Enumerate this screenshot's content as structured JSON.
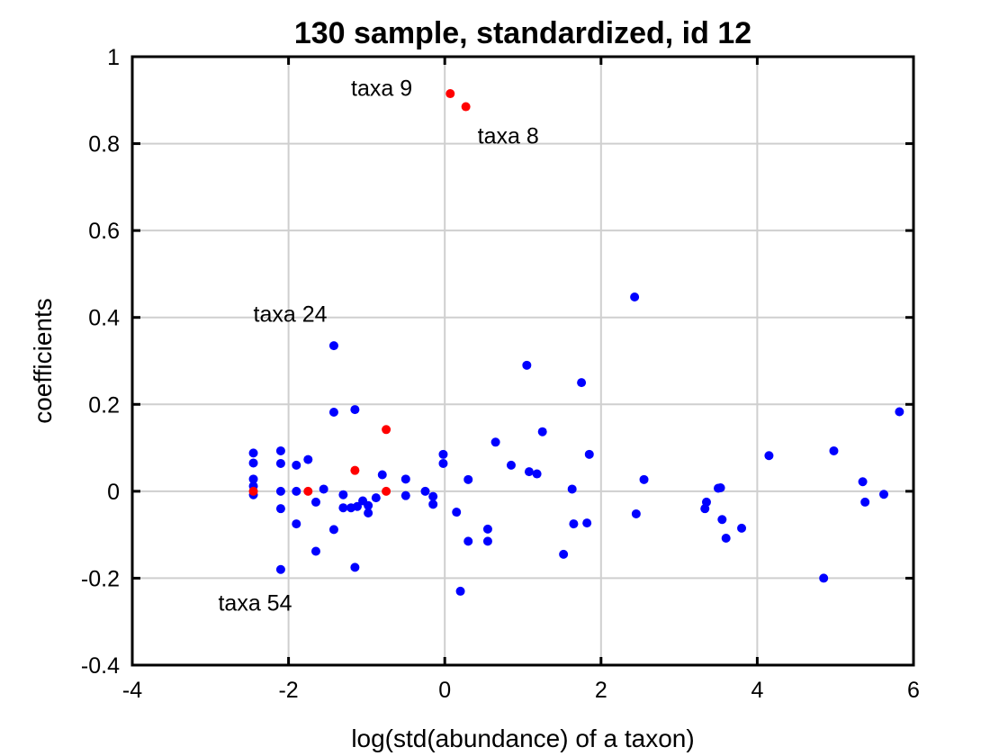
{
  "chart_data": {
    "type": "scatter",
    "title": "130 sample, standardized, id 12",
    "xlabel": "log(std(abundance) of a taxon)",
    "ylabel": "coefficients",
    "xlim": [
      -4,
      6
    ],
    "ylim": [
      -0.4,
      1
    ],
    "xticks": [
      -4,
      -2,
      0,
      2,
      4,
      6
    ],
    "yticks": [
      -0.4,
      -0.2,
      0,
      0.2,
      0.4,
      0.6,
      0.8,
      1
    ],
    "grid": true,
    "series": [
      {
        "color": "#0000ff",
        "points": [
          [
            -2.45,
            0.088
          ],
          [
            -2.45,
            0.065
          ],
          [
            -2.45,
            0.028
          ],
          [
            -2.45,
            0.012
          ],
          [
            -2.45,
            -0.008
          ],
          [
            -2.1,
            0.093
          ],
          [
            -2.1,
            0.064
          ],
          [
            -2.1,
            0.0
          ],
          [
            -2.1,
            -0.04
          ],
          [
            -2.1,
            -0.18
          ],
          [
            -1.9,
            0.06
          ],
          [
            -1.9,
            0.0
          ],
          [
            -1.9,
            -0.075
          ],
          [
            -1.75,
            0.073
          ],
          [
            -1.65,
            -0.025
          ],
          [
            -1.65,
            -0.138
          ],
          [
            -1.55,
            0.005
          ],
          [
            -1.42,
            0.335
          ],
          [
            -1.42,
            0.182
          ],
          [
            -1.42,
            -0.088
          ],
          [
            -1.3,
            -0.008
          ],
          [
            -1.3,
            -0.038
          ],
          [
            -1.2,
            -0.038
          ],
          [
            -1.15,
            0.188
          ],
          [
            -1.15,
            -0.175
          ],
          [
            -1.12,
            -0.035
          ],
          [
            -1.05,
            -0.022
          ],
          [
            -0.98,
            -0.033
          ],
          [
            -0.98,
            -0.05
          ],
          [
            -0.88,
            -0.015
          ],
          [
            -0.8,
            0.038
          ],
          [
            -0.5,
            0.028
          ],
          [
            -0.5,
            -0.01
          ],
          [
            -0.25,
            0.0
          ],
          [
            -0.15,
            -0.012
          ],
          [
            -0.15,
            -0.03
          ],
          [
            -0.02,
            0.085
          ],
          [
            -0.02,
            0.064
          ],
          [
            0.15,
            -0.048
          ],
          [
            0.2,
            -0.23
          ],
          [
            0.3,
            0.027
          ],
          [
            0.3,
            -0.115
          ],
          [
            0.55,
            -0.087
          ],
          [
            0.55,
            -0.115
          ],
          [
            0.65,
            0.113
          ],
          [
            0.85,
            0.06
          ],
          [
            1.05,
            0.29
          ],
          [
            1.08,
            0.045
          ],
          [
            1.18,
            0.04
          ],
          [
            1.25,
            0.137
          ],
          [
            1.52,
            -0.145
          ],
          [
            1.63,
            0.005
          ],
          [
            1.65,
            -0.075
          ],
          [
            1.75,
            0.25
          ],
          [
            1.82,
            -0.073
          ],
          [
            1.85,
            0.085
          ],
          [
            2.43,
            0.447
          ],
          [
            2.45,
            -0.052
          ],
          [
            2.55,
            0.027
          ],
          [
            3.33,
            -0.04
          ],
          [
            3.35,
            -0.025
          ],
          [
            3.5,
            0.007
          ],
          [
            3.53,
            0.008
          ],
          [
            3.55,
            -0.065
          ],
          [
            3.6,
            -0.108
          ],
          [
            3.8,
            -0.085
          ],
          [
            4.15,
            0.082
          ],
          [
            4.85,
            -0.2
          ],
          [
            4.98,
            0.093
          ],
          [
            5.35,
            0.022
          ],
          [
            5.38,
            -0.025
          ],
          [
            5.62,
            -0.007
          ],
          [
            5.82,
            0.183
          ]
        ]
      },
      {
        "color": "#ff0000",
        "points": [
          [
            0.07,
            0.915
          ],
          [
            0.27,
            0.885
          ],
          [
            -0.75,
            0.142
          ],
          [
            -1.15,
            0.048
          ],
          [
            -2.45,
            0.0
          ],
          [
            -1.75,
            0.0
          ],
          [
            -0.75,
            0.0
          ]
        ]
      }
    ],
    "annotations": [
      {
        "text": "taxa 9",
        "x": -1.2,
        "y": 0.91
      },
      {
        "text": "taxa 8",
        "x": 0.42,
        "y": 0.8
      },
      {
        "text": "taxa 24",
        "x": -2.45,
        "y": 0.39
      },
      {
        "text": "taxa 54",
        "x": -2.9,
        "y": -0.275
      }
    ]
  }
}
